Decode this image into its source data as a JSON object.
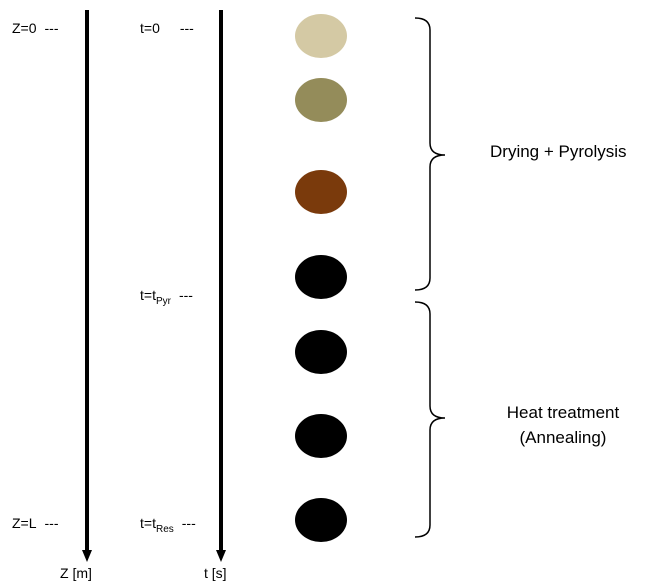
{
  "z_axis": {
    "top": {
      "text": "Z=0",
      "dashes": "---"
    },
    "bottom": {
      "text": "Z=L",
      "dashes": "---"
    },
    "label": "Z [m]"
  },
  "t_axis": {
    "top": {
      "text": "t=0",
      "dashes": "---"
    },
    "middle": {
      "text": "t=t",
      "sub": "Pyr",
      "dashes": "---"
    },
    "bottom": {
      "text": "t=t",
      "sub": "Res",
      "dashes": "---"
    },
    "label": "t [s]"
  },
  "particles": [
    {
      "color": "#d4c9a4"
    },
    {
      "color": "#948c5a"
    },
    {
      "color": "#7a3a0c"
    },
    {
      "color": "#000000"
    },
    {
      "color": "#000000"
    },
    {
      "color": "#000000"
    },
    {
      "color": "#000000"
    }
  ],
  "stages": [
    {
      "label": "Drying + Pyrolysis"
    },
    {
      "lines": [
        "Heat treatment",
        "(Annealing)"
      ]
    }
  ]
}
